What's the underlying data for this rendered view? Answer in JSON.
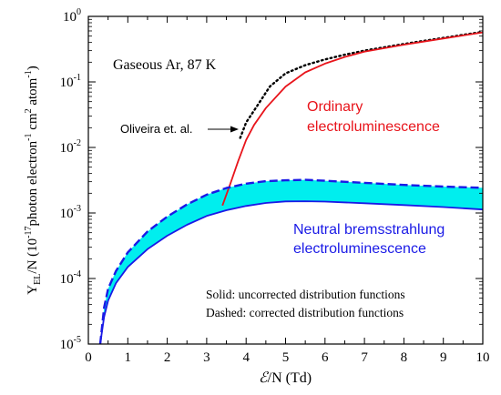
{
  "chart_data": {
    "type": "line",
    "xlabel": {
      "italic_symbol": "ℰ",
      "rest": "/N (Td)"
    },
    "ylabel": {
      "y": "Y",
      "sub": "EL",
      "mid": "/N (10",
      "exp1": "-17",
      "mid2": "photon electron",
      "exp2": "-1",
      "mid3": " cm",
      "exp3": "2",
      "mid4": " atom",
      "exp4": "-1",
      "end": ")"
    },
    "xlim": [
      0,
      10
    ],
    "ylim": [
      1e-05,
      1
    ],
    "yscale": "log",
    "x_ticks": [
      "0",
      "1",
      "2",
      "3",
      "4",
      "5",
      "6",
      "7",
      "8",
      "9",
      "10"
    ],
    "y_ticks": [
      {
        "base": "10",
        "exp": "-5",
        "value": 1e-05
      },
      {
        "base": "10",
        "exp": "-4",
        "value": 0.0001
      },
      {
        "base": "10",
        "exp": "-3",
        "value": 0.001
      },
      {
        "base": "10",
        "exp": "-2",
        "value": 0.01
      },
      {
        "base": "10",
        "exp": "-1",
        "value": 0.1
      },
      {
        "base": "10",
        "exp": "0",
        "value": 1
      }
    ],
    "series": [
      {
        "role": "oliveira",
        "color": "#000000",
        "style": "dotted",
        "x": [
          3.85,
          4.0,
          4.3,
          4.6,
          5.0,
          5.5,
          6.0,
          6.5,
          7.0,
          8.0,
          9.0,
          10.0
        ],
        "y": [
          0.014,
          0.024,
          0.045,
          0.085,
          0.135,
          0.18,
          0.22,
          0.26,
          0.3,
          0.38,
          0.47,
          0.58
        ]
      },
      {
        "role": "ordinary",
        "color": "#e8141b",
        "style": "solid",
        "x": [
          3.4,
          3.6,
          3.8,
          4.0,
          4.2,
          4.5,
          5.0,
          5.5,
          6.0,
          6.5,
          7.0,
          8.0,
          9.0,
          10.0
        ],
        "y": [
          0.0013,
          0.0028,
          0.0062,
          0.013,
          0.022,
          0.04,
          0.085,
          0.14,
          0.19,
          0.24,
          0.29,
          0.37,
          0.46,
          0.57
        ]
      },
      {
        "role": "nbrs_uncorrected",
        "color": "#1a1ae6",
        "style": "solid",
        "x": [
          0.3,
          0.4,
          0.5,
          0.7,
          1.0,
          1.5,
          2.0,
          2.5,
          3.0,
          3.5,
          4.0,
          4.5,
          5.0,
          5.5,
          6.0,
          7.0,
          8.0,
          9.0,
          10.0
        ],
        "y": [
          1e-05,
          2.6e-05,
          4.6e-05,
          8.5e-05,
          0.00015,
          0.00028,
          0.00045,
          0.00066,
          0.0009,
          0.0011,
          0.00128,
          0.00142,
          0.0015,
          0.00151,
          0.00149,
          0.00141,
          0.00132,
          0.00123,
          0.00113
        ]
      },
      {
        "role": "nbrs_corrected",
        "color": "#1a1ae6",
        "style": "dashed",
        "x": [
          0.3,
          0.4,
          0.5,
          0.7,
          1.0,
          1.5,
          2.0,
          2.5,
          3.0,
          3.5,
          4.0,
          4.5,
          5.0,
          5.5,
          6.0,
          7.0,
          8.0,
          9.0,
          10.0
        ],
        "y": [
          1e-05,
          3.6e-05,
          7e-05,
          0.00013,
          0.00025,
          0.00052,
          0.00088,
          0.00135,
          0.0019,
          0.0024,
          0.0028,
          0.00305,
          0.00315,
          0.0032,
          0.0031,
          0.00288,
          0.00268,
          0.00253,
          0.00242
        ]
      }
    ],
    "band_fill_color": "#00eeee",
    "annotations": {
      "condition": "Gaseous Ar, 87 K",
      "oliveira_label": "Oliveira et. al.",
      "ordinary_line1": "Ordinary",
      "ordinary_line2": "electroluminescence",
      "nbrs_line1": "Neutral bremsstrahlung",
      "nbrs_line2": "electroluminescence",
      "note_solid": "Solid: uncorrected  distribution functions",
      "note_dashed": "Dashed: corrected distribution functions"
    }
  }
}
